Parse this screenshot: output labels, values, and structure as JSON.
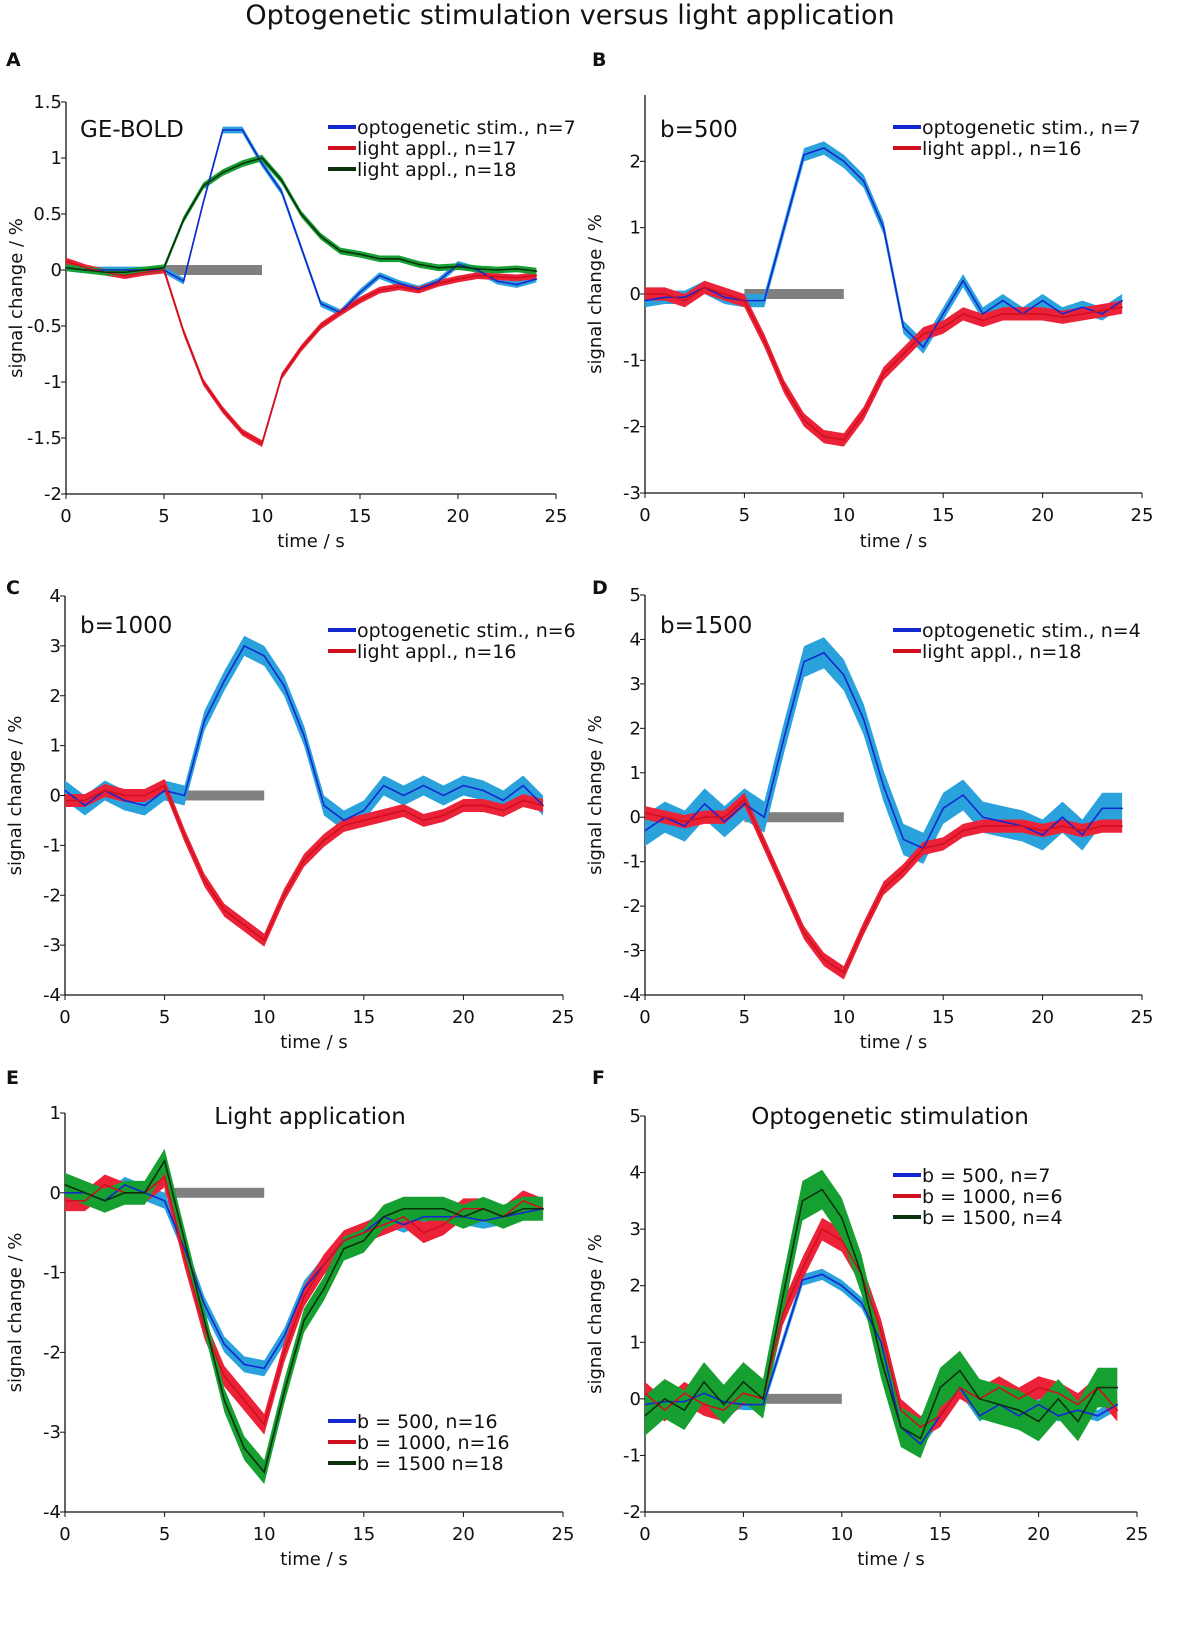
{
  "figure_title": "Optogenetic stimulation versus light application",
  "colors": {
    "blue_line": "#1428d0",
    "blue_band": "#2aa3dc",
    "red_line": "#d0101e",
    "red_band": "#ec2238",
    "green_line": "#0a300c",
    "green_band": "#16a032",
    "stim_bar": "#808080"
  },
  "chart_data": [
    {
      "panel": "A",
      "type": "line",
      "title": "",
      "annotation": "GE-BOLD",
      "xlabel": "time / s",
      "ylabel": "signal change / %",
      "xlim": [
        0,
        25
      ],
      "ylim": [
        -2,
        1.5
      ],
      "xticks": [
        0,
        5,
        10,
        15,
        20,
        25
      ],
      "yticks": [
        -2,
        -1.5,
        -1,
        -0.5,
        0,
        0.5,
        1,
        1.5
      ],
      "yticklabels": [
        "-2",
        "-1.5",
        "-1",
        "-0.5",
        "0",
        "0.5",
        "1",
        "1.5"
      ],
      "stimulus": [
        5,
        10
      ],
      "legend_placement": "top-right",
      "x": [
        0,
        1,
        2,
        3,
        4,
        5,
        6,
        7,
        8,
        9,
        10,
        11,
        12,
        13,
        14,
        15,
        16,
        17,
        18,
        19,
        20,
        21,
        22,
        23,
        24
      ],
      "series": [
        {
          "name": "optogenetic stim., n=7",
          "color": "blue",
          "band": 0.03,
          "values": [
            0.02,
            0,
            0,
            0,
            0,
            0,
            -0.1,
            0.6,
            1.25,
            1.25,
            0.95,
            0.7,
            0.2,
            -0.3,
            -0.38,
            -0.2,
            -0.05,
            -0.12,
            -0.17,
            -0.1,
            0.05,
            0,
            -0.1,
            -0.13,
            -0.08
          ]
        },
        {
          "name": "light appl., n=17",
          "color": "red",
          "band": 0.03,
          "values": [
            0.08,
            0.02,
            -0.02,
            -0.05,
            -0.02,
            0,
            -0.55,
            -1.0,
            -1.25,
            -1.45,
            -1.55,
            -0.95,
            -0.7,
            -0.5,
            -0.38,
            -0.27,
            -0.18,
            -0.15,
            -0.18,
            -0.12,
            -0.08,
            -0.05,
            -0.06,
            -0.07,
            -0.05
          ]
        },
        {
          "name": "light appl., n=18",
          "color": "green",
          "band": 0.03,
          "values": [
            0.02,
            0,
            -0.02,
            -0.02,
            0,
            0.02,
            0.45,
            0.75,
            0.87,
            0.95,
            1.0,
            0.8,
            0.5,
            0.3,
            0.17,
            0.14,
            0.1,
            0.1,
            0.05,
            0.02,
            0.03,
            0.01,
            0,
            0.01,
            -0.01
          ]
        }
      ]
    },
    {
      "panel": "B",
      "type": "line",
      "title": "",
      "annotation": "b=500",
      "xlabel": "time / s",
      "ylabel": "signal change / %",
      "xlim": [
        0,
        25
      ],
      "ylim": [
        -3,
        3
      ],
      "xticks": [
        0,
        5,
        10,
        15,
        20,
        25
      ],
      "yticks": [
        -3,
        -2,
        -1,
        0,
        1,
        2
      ],
      "yticklabels": [
        "-3",
        "-2",
        "-1",
        "0",
        "1",
        "2"
      ],
      "stimulus": [
        5,
        10
      ],
      "legend_placement": "top-right",
      "x": [
        0,
        1,
        2,
        3,
        4,
        5,
        6,
        7,
        8,
        9,
        10,
        11,
        12,
        13,
        14,
        15,
        16,
        17,
        18,
        19,
        20,
        21,
        22,
        23,
        24
      ],
      "series": [
        {
          "name": "optogenetic stim., n=7",
          "color": "blue",
          "band": 0.1,
          "values": [
            -0.1,
            -0.05,
            -0.05,
            0.1,
            -0.05,
            -0.1,
            -0.1,
            1.0,
            2.1,
            2.2,
            2.0,
            1.7,
            1.0,
            -0.5,
            -0.8,
            -0.3,
            0.2,
            -0.3,
            -0.1,
            -0.3,
            -0.1,
            -0.3,
            -0.2,
            -0.3,
            -0.1
          ]
        },
        {
          "name": "light appl., n=16",
          "color": "red",
          "band": 0.1,
          "values": [
            0,
            0,
            -0.1,
            0.1,
            0,
            -0.1,
            -0.7,
            -1.4,
            -1.9,
            -2.15,
            -2.2,
            -1.8,
            -1.2,
            -0.9,
            -0.6,
            -0.5,
            -0.3,
            -0.4,
            -0.3,
            -0.3,
            -0.3,
            -0.35,
            -0.3,
            -0.25,
            -0.2
          ]
        }
      ]
    },
    {
      "panel": "C",
      "type": "line",
      "title": "",
      "annotation": "b=1000",
      "xlabel": "time / s",
      "ylabel": "signal change / %",
      "xlim": [
        0,
        25
      ],
      "ylim": [
        -4,
        4
      ],
      "xticks": [
        0,
        5,
        10,
        15,
        20,
        25
      ],
      "yticks": [
        -4,
        -3,
        -2,
        -1,
        0,
        1,
        2,
        3,
        4
      ],
      "yticklabels": [
        "-4",
        "-3",
        "-2",
        "-1",
        "0",
        "1",
        "2",
        "3",
        "4"
      ],
      "stimulus": [
        5,
        10
      ],
      "legend_placement": "top-right",
      "x": [
        0,
        1,
        2,
        3,
        4,
        5,
        6,
        7,
        8,
        9,
        10,
        11,
        12,
        13,
        14,
        15,
        16,
        17,
        18,
        19,
        20,
        21,
        22,
        23,
        24
      ],
      "series": [
        {
          "name": "optogenetic stim., n=6",
          "color": "blue",
          "band": 0.2,
          "values": [
            0.1,
            -0.2,
            0.1,
            -0.1,
            -0.2,
            0.1,
            0,
            1.5,
            2.3,
            3.0,
            2.8,
            2.2,
            1.2,
            -0.2,
            -0.5,
            -0.3,
            0.2,
            0,
            0.2,
            0,
            0.2,
            0.1,
            -0.1,
            0.2,
            -0.2
          ]
        },
        {
          "name": "light appl., n=16",
          "color": "red",
          "band": 0.13,
          "values": [
            -0.1,
            -0.1,
            0.1,
            0,
            0,
            0.2,
            -0.8,
            -1.7,
            -2.3,
            -2.6,
            -2.9,
            -2.0,
            -1.3,
            -0.9,
            -0.6,
            -0.5,
            -0.4,
            -0.3,
            -0.5,
            -0.4,
            -0.2,
            -0.2,
            -0.3,
            -0.1,
            -0.2
          ]
        }
      ]
    },
    {
      "panel": "D",
      "type": "line",
      "title": "",
      "annotation": "b=1500",
      "xlabel": "time / s",
      "ylabel": "signal change / %",
      "xlim": [
        0,
        25
      ],
      "ylim": [
        -4,
        5
      ],
      "xticks": [
        0,
        5,
        10,
        15,
        20,
        25
      ],
      "yticks": [
        -4,
        -3,
        -2,
        -1,
        0,
        1,
        2,
        3,
        4,
        5
      ],
      "yticklabels": [
        "-4",
        "-3",
        "-2",
        "-1",
        "0",
        "1",
        "2",
        "3",
        "4",
        "5"
      ],
      "stimulus": [
        5,
        10
      ],
      "legend_placement": "top-right",
      "x": [
        0,
        1,
        2,
        3,
        4,
        5,
        6,
        7,
        8,
        9,
        10,
        11,
        12,
        13,
        14,
        15,
        16,
        17,
        18,
        19,
        20,
        21,
        22,
        23,
        24
      ],
      "series": [
        {
          "name": "optogenetic stim., n=4",
          "color": "blue",
          "band": 0.35,
          "values": [
            -0.3,
            0,
            -0.2,
            0.3,
            -0.1,
            0.3,
            0,
            1.8,
            3.5,
            3.7,
            3.2,
            2.2,
            0.7,
            -0.5,
            -0.7,
            0.2,
            0.5,
            0,
            -0.1,
            -0.2,
            -0.4,
            0,
            -0.4,
            0.2,
            0.2
          ]
        },
        {
          "name": "light appl., n=18",
          "color": "red",
          "band": 0.15,
          "values": [
            0.1,
            0,
            -0.1,
            0,
            0,
            0.4,
            -0.6,
            -1.6,
            -2.6,
            -3.2,
            -3.5,
            -2.5,
            -1.6,
            -1.2,
            -0.7,
            -0.6,
            -0.3,
            -0.2,
            -0.2,
            -0.2,
            -0.3,
            -0.2,
            -0.3,
            -0.2,
            -0.2
          ]
        }
      ]
    },
    {
      "panel": "E",
      "type": "line",
      "title": "Light application",
      "annotation": "",
      "xlabel": "time / s",
      "ylabel": "signal change / %",
      "xlim": [
        0,
        25
      ],
      "ylim": [
        -4,
        1
      ],
      "xticks": [
        0,
        5,
        10,
        15,
        20,
        25
      ],
      "yticks": [
        -4,
        -3,
        -2,
        -1,
        0,
        1
      ],
      "yticklabels": [
        "-4",
        "-3",
        "-2",
        "-1",
        "0",
        "1"
      ],
      "stimulus": [
        5,
        10
      ],
      "legend_placement": "bottom-right",
      "x": [
        0,
        1,
        2,
        3,
        4,
        5,
        6,
        7,
        8,
        9,
        10,
        11,
        12,
        13,
        14,
        15,
        16,
        17,
        18,
        19,
        20,
        21,
        22,
        23,
        24
      ],
      "series": [
        {
          "name": "b = 500, n=16",
          "color": "blue",
          "band": 0.1,
          "values": [
            0,
            0,
            -0.1,
            0.1,
            0,
            -0.1,
            -0.7,
            -1.4,
            -1.9,
            -2.15,
            -2.2,
            -1.8,
            -1.2,
            -0.9,
            -0.6,
            -0.5,
            -0.3,
            -0.4,
            -0.3,
            -0.3,
            -0.3,
            -0.35,
            -0.3,
            -0.25,
            -0.2
          ]
        },
        {
          "name": "b = 1000, n=16",
          "color": "red",
          "band": 0.13,
          "values": [
            -0.1,
            -0.1,
            0.1,
            0,
            0,
            0.2,
            -0.8,
            -1.7,
            -2.3,
            -2.6,
            -2.9,
            -2.0,
            -1.3,
            -0.9,
            -0.6,
            -0.5,
            -0.4,
            -0.3,
            -0.5,
            -0.4,
            -0.2,
            -0.2,
            -0.3,
            -0.1,
            -0.2
          ]
        },
        {
          "name": "b = 1500 n=18",
          "color": "green",
          "band": 0.15,
          "values": [
            0.1,
            0,
            -0.1,
            0,
            0,
            0.4,
            -0.6,
            -1.6,
            -2.6,
            -3.2,
            -3.5,
            -2.5,
            -1.6,
            -1.2,
            -0.7,
            -0.6,
            -0.3,
            -0.2,
            -0.2,
            -0.2,
            -0.3,
            -0.2,
            -0.3,
            -0.2,
            -0.2
          ]
        }
      ]
    },
    {
      "panel": "F",
      "type": "line",
      "title": "Optogenetic stimulation",
      "annotation": "",
      "xlabel": "time / s",
      "ylabel": "signal change / %",
      "xlim": [
        0,
        25
      ],
      "ylim": [
        -2,
        5
      ],
      "xticks": [
        0,
        5,
        10,
        15,
        20,
        25
      ],
      "yticks": [
        -2,
        -1,
        0,
        1,
        2,
        3,
        4,
        5
      ],
      "yticklabels": [
        "-2",
        "-1",
        "0",
        "1",
        "2",
        "3",
        "4",
        "5"
      ],
      "stimulus": [
        5,
        10
      ],
      "legend_placement": "top-right",
      "x": [
        0,
        1,
        2,
        3,
        4,
        5,
        6,
        7,
        8,
        9,
        10,
        11,
        12,
        13,
        14,
        15,
        16,
        17,
        18,
        19,
        20,
        21,
        22,
        23,
        24
      ],
      "series": [
        {
          "name": "b = 500, n=7",
          "color": "blue",
          "band": 0.1,
          "values": [
            -0.1,
            -0.05,
            -0.05,
            0.1,
            -0.05,
            -0.1,
            -0.1,
            1.0,
            2.1,
            2.2,
            2.0,
            1.7,
            1.0,
            -0.5,
            -0.8,
            -0.3,
            0.2,
            -0.3,
            -0.1,
            -0.3,
            -0.1,
            -0.3,
            -0.2,
            -0.3,
            -0.1
          ]
        },
        {
          "name": "b = 1000, n=6",
          "color": "red",
          "band": 0.2,
          "values": [
            0.1,
            -0.2,
            0.1,
            -0.1,
            -0.2,
            0.1,
            0,
            1.5,
            2.3,
            3.0,
            2.8,
            2.2,
            1.2,
            -0.2,
            -0.5,
            -0.3,
            0.2,
            0,
            0.2,
            0,
            0.2,
            0.1,
            -0.1,
            0.2,
            -0.2
          ]
        },
        {
          "name": "b = 1500, n=4",
          "color": "green",
          "band": 0.35,
          "values": [
            -0.3,
            0,
            -0.2,
            0.3,
            -0.1,
            0.3,
            0,
            1.8,
            3.5,
            3.7,
            3.2,
            2.2,
            0.7,
            -0.5,
            -0.7,
            0.2,
            0.5,
            0,
            -0.1,
            -0.2,
            -0.4,
            0,
            -0.4,
            0.2,
            0.2
          ]
        }
      ]
    }
  ]
}
